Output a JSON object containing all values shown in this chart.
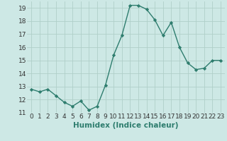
{
  "x": [
    0,
    1,
    2,
    3,
    4,
    5,
    6,
    7,
    8,
    9,
    10,
    11,
    12,
    13,
    14,
    15,
    16,
    17,
    18,
    19,
    20,
    21,
    22,
    23
  ],
  "y": [
    12.8,
    12.6,
    12.8,
    12.3,
    11.8,
    11.5,
    11.9,
    11.2,
    11.5,
    13.1,
    15.4,
    16.9,
    19.2,
    19.2,
    18.9,
    18.1,
    16.9,
    17.9,
    16.0,
    14.8,
    14.3,
    14.4,
    15.0,
    15.0
  ],
  "line_color": "#2e7d6e",
  "marker": "D",
  "marker_size": 2.2,
  "bg_color": "#cde8e5",
  "grid_color": "#b0cfc9",
  "xlabel": "Humidex (Indice chaleur)",
  "ylabel": "",
  "ylim": [
    11,
    19.5
  ],
  "xlim": [
    -0.5,
    23.5
  ],
  "yticks": [
    11,
    12,
    13,
    14,
    15,
    16,
    17,
    18,
    19
  ],
  "xticks": [
    0,
    1,
    2,
    3,
    4,
    5,
    6,
    7,
    8,
    9,
    10,
    11,
    12,
    13,
    14,
    15,
    16,
    17,
    18,
    19,
    20,
    21,
    22,
    23
  ],
  "tick_label_fontsize": 6.5,
  "xlabel_fontsize": 7.5,
  "line_width": 1.0
}
